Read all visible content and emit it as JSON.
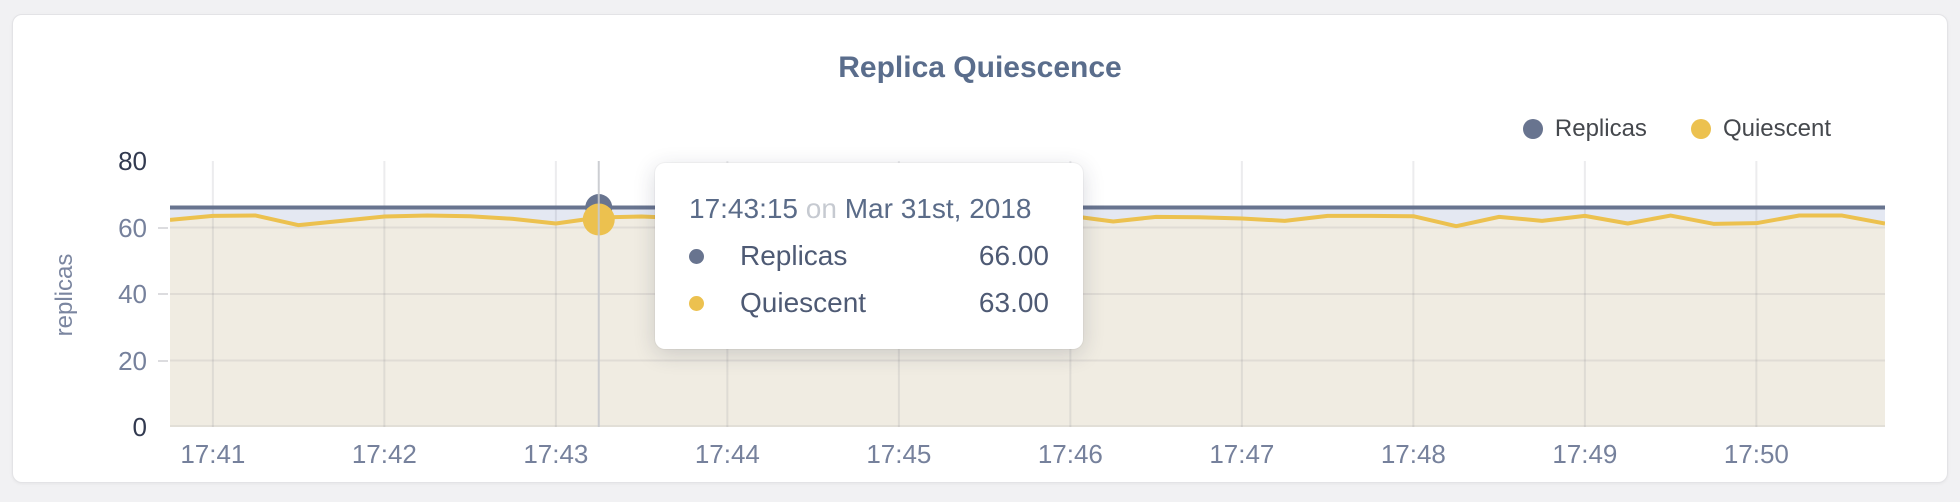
{
  "chart": {
    "title": "Replica Quiescence",
    "y_axis_title": "replicas"
  },
  "tooltip": {
    "time": "17:43:15",
    "conjunction": "on",
    "date": "Mar 31st, 2018",
    "rows": [
      {
        "label": "Replicas",
        "value": "66.00",
        "color": "#68748f"
      },
      {
        "label": "Quiescent",
        "value": "63.00",
        "color": "#ecc14f"
      }
    ]
  },
  "chart_data": {
    "type": "line",
    "title": "Replica Quiescence",
    "xlabel": "",
    "ylabel": "replicas",
    "ylim": [
      0,
      80
    ],
    "y_ticks": [
      0,
      20,
      40,
      60,
      80
    ],
    "x_ticks": [
      "17:41",
      "17:42",
      "17:43",
      "17:44",
      "17:45",
      "17:46",
      "17:47",
      "17:48",
      "17:49",
      "17:50"
    ],
    "grid": true,
    "legend_position": "top-right",
    "x": [
      "17:40:45",
      "17:41:00",
      "17:41:15",
      "17:41:30",
      "17:41:45",
      "17:42:00",
      "17:42:15",
      "17:42:30",
      "17:42:45",
      "17:43:00",
      "17:43:15",
      "17:43:30",
      "17:43:45",
      "17:44:00",
      "17:44:15",
      "17:44:30",
      "17:44:45",
      "17:45:00",
      "17:45:15",
      "17:45:30",
      "17:45:45",
      "17:46:00",
      "17:46:15",
      "17:46:30",
      "17:46:45",
      "17:47:00",
      "17:47:15",
      "17:47:30",
      "17:47:45",
      "17:48:00",
      "17:48:15",
      "17:48:30",
      "17:48:45",
      "17:49:00",
      "17:49:15",
      "17:49:30",
      "17:49:45",
      "17:50:00",
      "17:50:15",
      "17:50:30",
      "17:50:45"
    ],
    "series": [
      {
        "name": "Replicas",
        "color": "#68748f",
        "fill": "#e4e8f2",
        "values": [
          66,
          66,
          66,
          66,
          66,
          66,
          66,
          66,
          66,
          66,
          66,
          66,
          66,
          66,
          66,
          66,
          66,
          66,
          66,
          66,
          66,
          66,
          66,
          66,
          66,
          66,
          66,
          66,
          66,
          66,
          66,
          66,
          66,
          66,
          66,
          66,
          66,
          66,
          66,
          66,
          66
        ]
      },
      {
        "name": "Quiescent",
        "color": "#ecc14f",
        "fill": "#f0ece2",
        "values": [
          62.3,
          63.5,
          63.6,
          60.7,
          62,
          63.3,
          63.6,
          63.4,
          62.6,
          61.2,
          63,
          63.3,
          62.8,
          63.5,
          62.4,
          63.2,
          63,
          62.2,
          63.4,
          63,
          62.5,
          63.5,
          61.8,
          63.2,
          63.1,
          62.7,
          62,
          63.5,
          63.5,
          63.4,
          60.4,
          63.2,
          62,
          63.5,
          61.2,
          63.6,
          61.1,
          61.3,
          63.6,
          63.6,
          61.2
        ]
      }
    ],
    "hover": {
      "x_time": "17:43:15",
      "Replicas": 66.0,
      "Quiescent": 63.0
    }
  }
}
